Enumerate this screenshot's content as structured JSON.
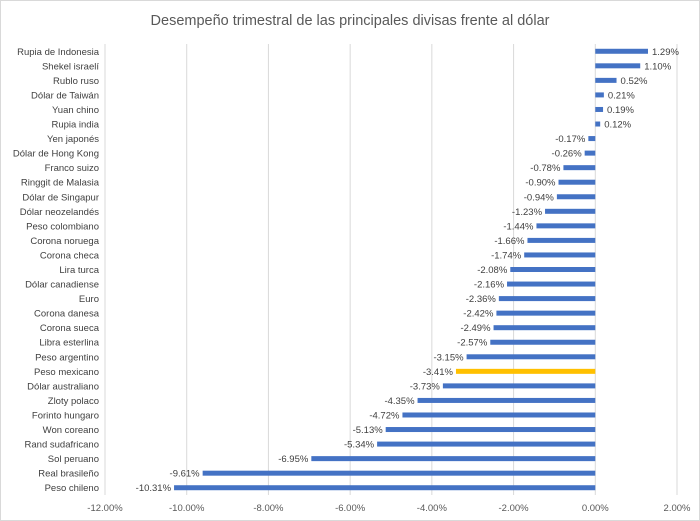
{
  "chart_data": {
    "type": "bar",
    "orientation": "horizontal",
    "title": "Desempeño trimestral de las principales divisas frente al dólar",
    "xlabel": "",
    "ylabel": "",
    "xlim": [
      -12,
      2
    ],
    "x_ticks": [
      -12,
      -10,
      -8,
      -6,
      -4,
      -2,
      0,
      2
    ],
    "x_tick_labels": [
      "-12.00%",
      "-10.00%",
      "-8.00%",
      "-6.00%",
      "-4.00%",
      "-2.00%",
      "0.00%",
      "2.00%"
    ],
    "grid": true,
    "legend": "none",
    "colors": {
      "bar": "#4472c4",
      "highlight": "#ffc000"
    },
    "highlight_category": "Peso mexicano",
    "categories": [
      "Rupia de Indonesia",
      "Shekel israelí",
      "Rublo ruso",
      "Dólar de Taiwán",
      "Yuan chino",
      "Rupia india",
      "Yen japonés",
      "Dólar de Hong Kong",
      "Franco suizo",
      "Ringgit de Malasia",
      "Dólar de Singapur",
      "Dólar neozelandés",
      "Peso colombiano",
      "Corona noruega",
      "Corona checa",
      "Lira turca",
      "Dólar canadiense",
      "Euro",
      "Corona danesa",
      "Corona sueca",
      "Libra esterlina",
      "Peso argentino",
      "Peso mexicano",
      "Dólar australiano",
      "Zloty polaco",
      "Forinto hungaro",
      "Won coreano",
      "Rand sudafricano",
      "Sol peruano",
      "Real brasileño",
      "Peso chileno"
    ],
    "values": [
      1.29,
      1.1,
      0.52,
      0.21,
      0.19,
      0.12,
      -0.17,
      -0.26,
      -0.78,
      -0.9,
      -0.94,
      -1.23,
      -1.44,
      -1.66,
      -1.74,
      -2.08,
      -2.16,
      -2.36,
      -2.42,
      -2.49,
      -2.57,
      -3.15,
      -3.41,
      -3.73,
      -4.35,
      -4.72,
      -5.13,
      -5.34,
      -6.95,
      -9.61,
      -10.31
    ],
    "value_labels": [
      "1.29%",
      "1.10%",
      "0.52%",
      "0.21%",
      "0.19%",
      "0.12%",
      "-0.17%",
      "-0.26%",
      "-0.78%",
      "-0.90%",
      "-0.94%",
      "-1.23%",
      "-1.44%",
      "-1.66%",
      "-1.74%",
      "-2.08%",
      "-2.16%",
      "-2.36%",
      "-2.42%",
      "-2.49%",
      "-2.57%",
      "-3.15%",
      "-3.41%",
      "-3.73%",
      "-4.35%",
      "-4.72%",
      "-5.13%",
      "-5.34%",
      "-6.95%",
      "-9.61%",
      "-10.31%"
    ]
  }
}
